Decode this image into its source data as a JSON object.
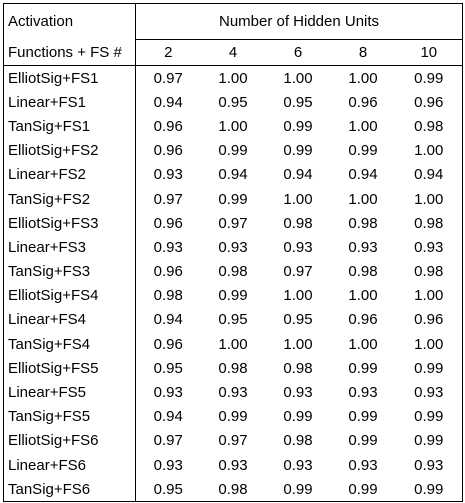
{
  "header": {
    "corner_line1": "Activation",
    "corner_line2": "Functions + FS #",
    "group_title": "Number of Hidden Units",
    "columns": [
      "2",
      "4",
      "6",
      "8",
      "10"
    ]
  },
  "rows": [
    {
      "label": "ElliotSig+FS1",
      "values": [
        "0.97",
        "1.00",
        "1.00",
        "1.00",
        "0.99"
      ]
    },
    {
      "label": "Linear+FS1",
      "values": [
        "0.94",
        "0.95",
        "0.95",
        "0.96",
        "0.96"
      ]
    },
    {
      "label": "TanSig+FS1",
      "values": [
        "0.96",
        "1.00",
        "0.99",
        "1.00",
        "0.98"
      ]
    },
    {
      "label": "ElliotSig+FS2",
      "values": [
        "0.96",
        "0.99",
        "0.99",
        "0.99",
        "1.00"
      ]
    },
    {
      "label": "Linear+FS2",
      "values": [
        "0.93",
        "0.94",
        "0.94",
        "0.94",
        "0.94"
      ]
    },
    {
      "label": "TanSig+FS2",
      "values": [
        "0.97",
        "0.99",
        "1.00",
        "1.00",
        "1.00"
      ]
    },
    {
      "label": "ElliotSig+FS3",
      "values": [
        "0.96",
        "0.97",
        "0.98",
        "0.98",
        "0.98"
      ]
    },
    {
      "label": "Linear+FS3",
      "values": [
        "0.93",
        "0.93",
        "0.93",
        "0.93",
        "0.93"
      ]
    },
    {
      "label": "TanSig+FS3",
      "values": [
        "0.96",
        "0.98",
        "0.97",
        "0.98",
        "0.98"
      ]
    },
    {
      "label": "ElliotSig+FS4",
      "values": [
        "0.98",
        "0.99",
        "1.00",
        "1.00",
        "1.00"
      ]
    },
    {
      "label": "Linear+FS4",
      "values": [
        "0.94",
        "0.95",
        "0.95",
        "0.96",
        "0.96"
      ]
    },
    {
      "label": "TanSig+FS4",
      "values": [
        "0.96",
        "1.00",
        "1.00",
        "1.00",
        "1.00"
      ]
    },
    {
      "label": "ElliotSig+FS5",
      "values": [
        "0.95",
        "0.98",
        "0.98",
        "0.99",
        "0.99"
      ]
    },
    {
      "label": "Linear+FS5",
      "values": [
        "0.93",
        "0.93",
        "0.93",
        "0.93",
        "0.93"
      ]
    },
    {
      "label": "TanSig+FS5",
      "values": [
        "0.94",
        "0.99",
        "0.99",
        "0.99",
        "0.99"
      ]
    },
    {
      "label": "ElliotSig+FS6",
      "values": [
        "0.97",
        "0.97",
        "0.98",
        "0.99",
        "0.99"
      ]
    },
    {
      "label": "Linear+FS6",
      "values": [
        "0.93",
        "0.93",
        "0.93",
        "0.93",
        "0.93"
      ]
    },
    {
      "label": "TanSig+FS6",
      "values": [
        "0.95",
        "0.98",
        "0.99",
        "0.99",
        "0.99"
      ]
    }
  ]
}
